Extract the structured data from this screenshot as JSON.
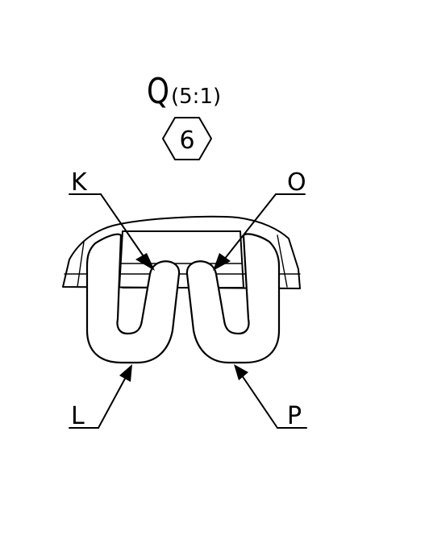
{
  "view": {
    "letter": "Q",
    "scale": "(5:1)",
    "detail_number": "6"
  },
  "callouts": {
    "k": "K",
    "o": "O",
    "l": "L",
    "p": "P"
  }
}
